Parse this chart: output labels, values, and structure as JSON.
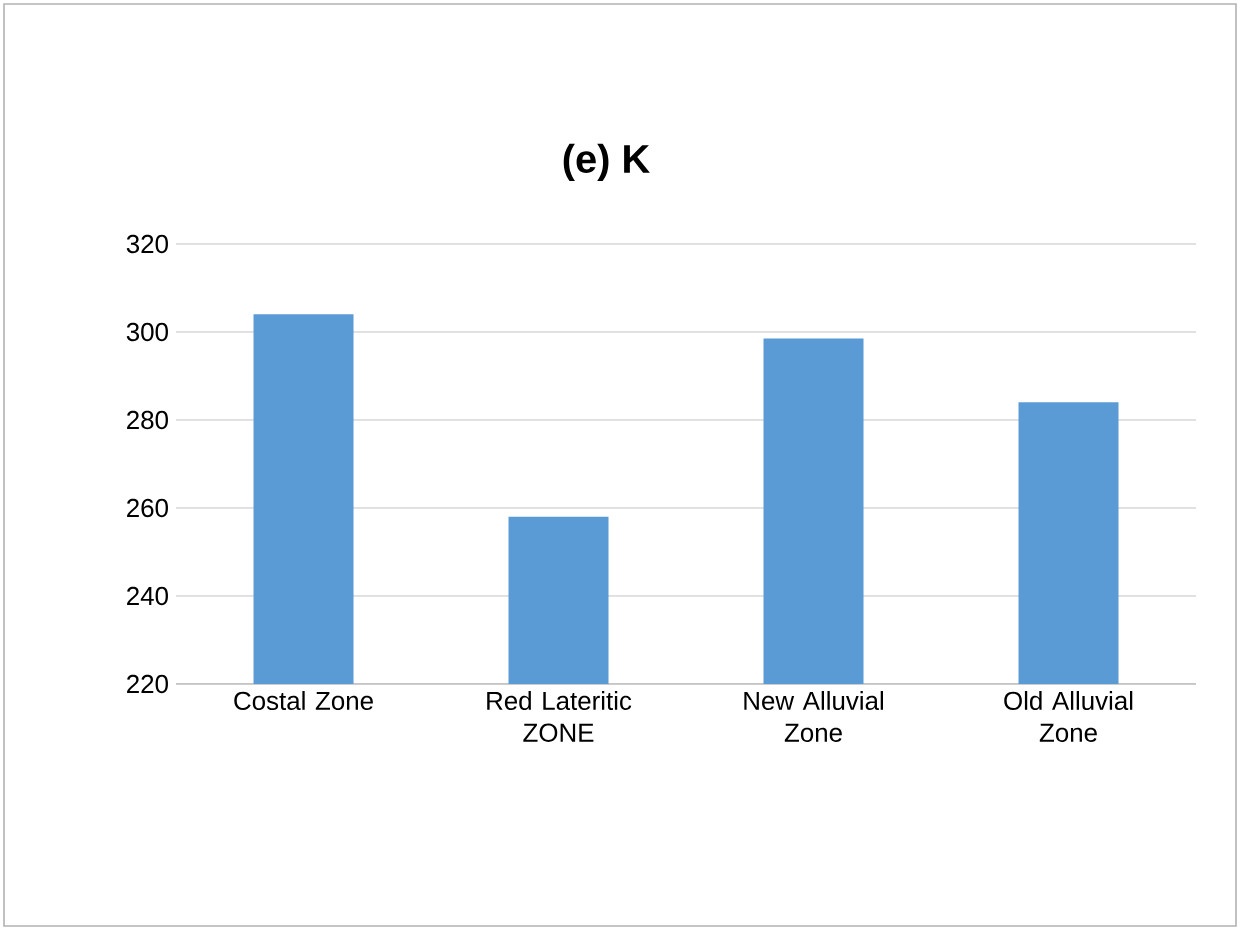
{
  "chart_data": {
    "type": "bar",
    "title": "(e)    K",
    "categories": [
      "Costal Zone",
      "Red Lateritic ZONE",
      "New Alluvial Zone",
      "Old Alluvial Zone"
    ],
    "values": [
      304,
      258,
      298.5,
      284
    ],
    "color": "#5b9bd5",
    "ylim": [
      220,
      320
    ],
    "yticks": [
      220,
      240,
      260,
      280,
      300,
      320
    ],
    "grid": "y"
  }
}
